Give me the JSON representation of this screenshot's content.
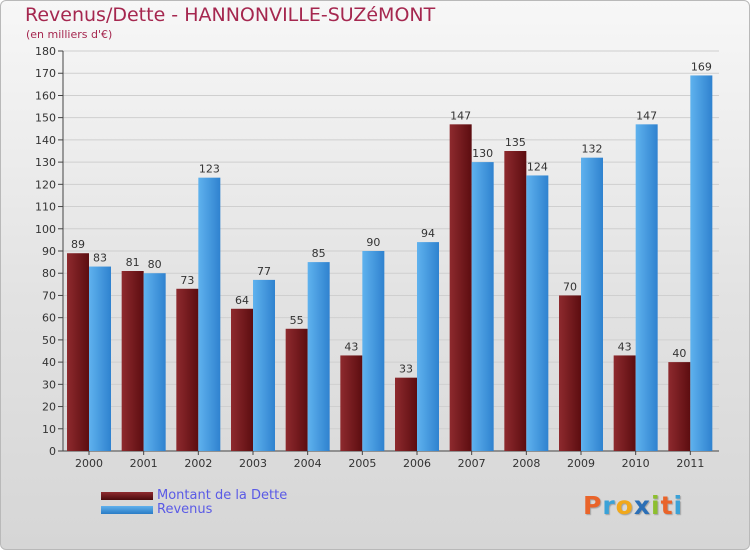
{
  "chart_data": {
    "type": "bar",
    "title": "Revenus/Dette - HANNONVILLE-SUZéMONT",
    "subtitle": "(en milliers d'€)",
    "categories": [
      "2000",
      "2001",
      "2002",
      "2003",
      "2004",
      "2005",
      "2006",
      "2007",
      "2008",
      "2009",
      "2010",
      "2011"
    ],
    "series": [
      {
        "name": "Montant de la Dette",
        "color": "#7a1a1e",
        "values": [
          89,
          81,
          73,
          64,
          55,
          43,
          33,
          147,
          135,
          70,
          43,
          40
        ]
      },
      {
        "name": "Revenus",
        "color": "#3d92dc",
        "values": [
          83,
          80,
          123,
          77,
          85,
          90,
          94,
          130,
          124,
          132,
          147,
          169
        ]
      }
    ],
    "ylim": [
      0,
      180
    ],
    "yticks": [
      0,
      10,
      20,
      30,
      40,
      50,
      60,
      70,
      80,
      90,
      100,
      110,
      120,
      130,
      140,
      150,
      160,
      170,
      180
    ],
    "grid": true,
    "legend_position": "bottom-left"
  },
  "logo": {
    "text": "Proxiti",
    "letters": [
      "P",
      "r",
      "o",
      "x",
      "i",
      "t",
      "i"
    ],
    "colors": [
      "#e9642a",
      "#3aa2d8",
      "#f1a81b",
      "#2b6fb6",
      "#8dbf2e",
      "#e9642a",
      "#3aa2d8"
    ]
  }
}
